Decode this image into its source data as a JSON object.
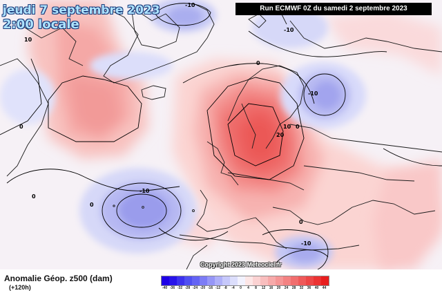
{
  "header": {
    "date": "jeudi 7 septembre 2023",
    "local_time": "2:00 locale",
    "run": "Run ECMWF 0Z du samedi 2 septembre 2023"
  },
  "map": {
    "copyright": "Copyright 2023 Meteociel.fr",
    "contour_labels": {
      "pos_10_west": "10",
      "neg_10_greenland": "-10",
      "zero_north": "0",
      "zero_atlantic": "0",
      "zero_west": "0",
      "neg_10_scandinavia": "-10",
      "zero_russia": "0",
      "pos_10_europe": "10",
      "pos_20_europe": "20",
      "neg_10_atlantic": "-10",
      "zero_azores": "0",
      "zero_med": "0",
      "neg_10_med": "-10",
      "neg_10_north": "-10"
    }
  },
  "legend": {
    "title": "Anomalie Géop. z500 (dam)",
    "lead_time": "(+120h)",
    "scale": [
      {
        "label": "-40",
        "color": "#1e00e6"
      },
      {
        "label": "-36",
        "color": "#2814ea"
      },
      {
        "label": "-32",
        "color": "#3c32ef"
      },
      {
        "label": "-28",
        "color": "#5050f2"
      },
      {
        "label": "-24",
        "color": "#6464f4"
      },
      {
        "label": "-20",
        "color": "#7c7cf5"
      },
      {
        "label": "-16",
        "color": "#9696f7"
      },
      {
        "label": "-12",
        "color": "#afb0f9"
      },
      {
        "label": "-8",
        "color": "#c6c8fb"
      },
      {
        "label": "-4",
        "color": "#dcdefc"
      },
      {
        "label": "0",
        "color": "#f2f2fe"
      },
      {
        "label": "4",
        "color": "#fde6e6"
      },
      {
        "label": "8",
        "color": "#fbd2d2"
      },
      {
        "label": "12",
        "color": "#f9bebe"
      },
      {
        "label": "16",
        "color": "#f7aaaa"
      },
      {
        "label": "20",
        "color": "#f59696"
      },
      {
        "label": "24",
        "color": "#f38282"
      },
      {
        "label": "28",
        "color": "#f16e6e"
      },
      {
        "label": "32",
        "color": "#ef5a5a"
      },
      {
        "label": "36",
        "color": "#ed4646"
      },
      {
        "label": "40",
        "color": "#eb3232"
      },
      {
        "label": "44",
        "color": "#e81e1e"
      }
    ]
  }
}
